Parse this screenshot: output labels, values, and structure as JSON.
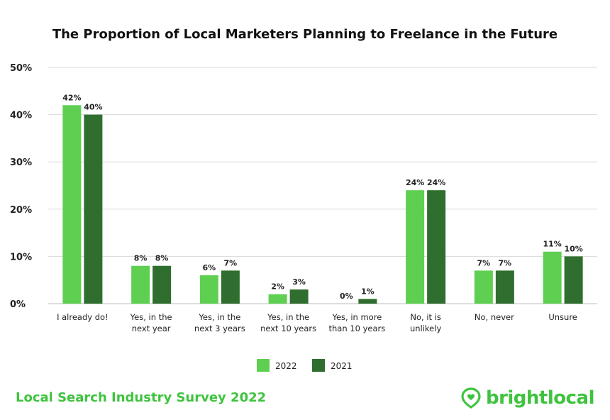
{
  "colors": {
    "series_2022": "#5fcf52",
    "series_2021": "#2f6e2f",
    "grid": "#d9d9d9",
    "footer_green": "#3fc33f"
  },
  "footer": {
    "survey": "Local Search Industry Survey 2022",
    "brand": "brightlocal",
    "brand_icon": "location-heart-icon"
  },
  "chart_data": {
    "type": "bar",
    "title": "The Proportion of Local Marketers Planning to Freelance in the Future",
    "xlabel": "",
    "ylabel": "",
    "ylim": [
      0,
      50
    ],
    "yticks": [
      "0%",
      "10%",
      "20%",
      "30%",
      "40%",
      "50%"
    ],
    "grid": true,
    "legend_position": "bottom",
    "categories": [
      [
        "I already do!"
      ],
      [
        "Yes, in the",
        "next year"
      ],
      [
        "Yes, in the",
        "next 3 years"
      ],
      [
        "Yes, in the",
        "next 10 years"
      ],
      [
        "Yes, in more",
        "than 10 years"
      ],
      [
        "No, it is",
        "unlikely"
      ],
      [
        "No, never"
      ],
      [
        "Unsure"
      ]
    ],
    "series": [
      {
        "name": "2022",
        "values": [
          42,
          8,
          6,
          2,
          0,
          24,
          7,
          11
        ],
        "labels": [
          "42%",
          "8%",
          "6%",
          "2%",
          "0%",
          "24%",
          "7%",
          "11%"
        ]
      },
      {
        "name": "2021",
        "values": [
          40,
          8,
          7,
          3,
          1,
          24,
          7,
          10
        ],
        "labels": [
          "40%",
          "8%",
          "7%",
          "3%",
          "1%",
          "24%",
          "7%",
          "10%"
        ]
      }
    ]
  }
}
